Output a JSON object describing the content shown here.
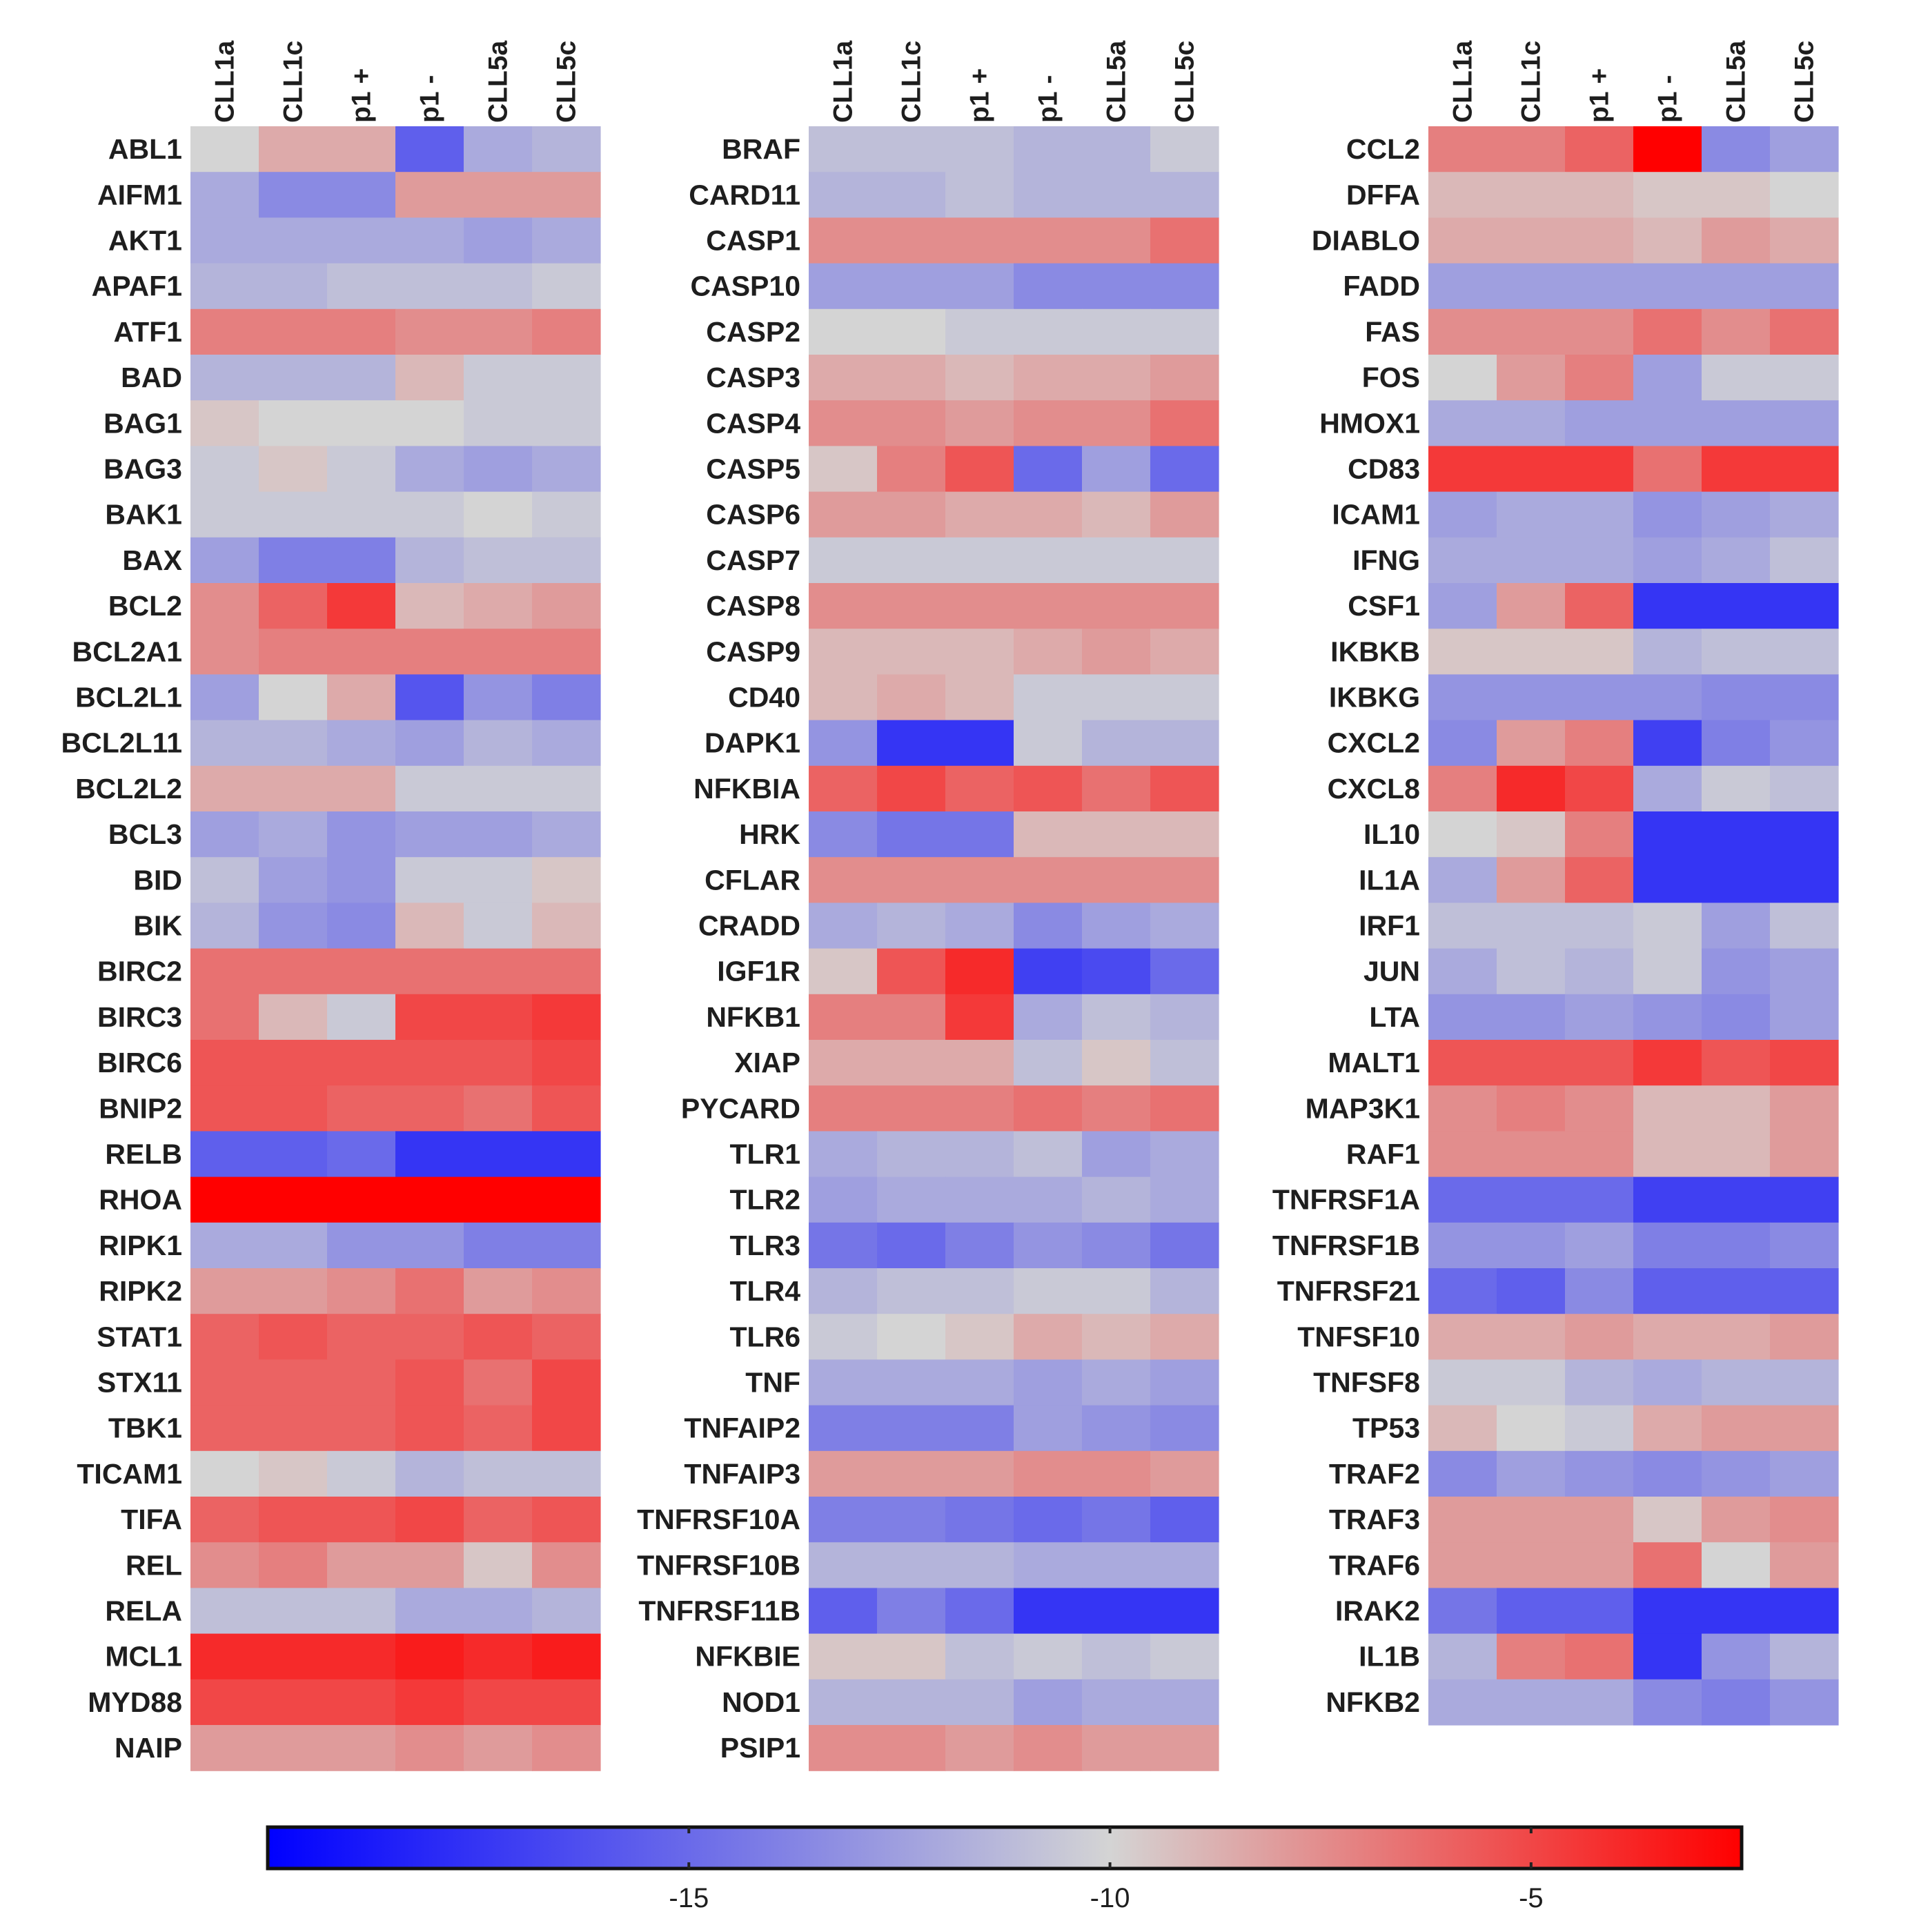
{
  "chart_data": {
    "type": "heatmap",
    "title": "",
    "columns": [
      "CLL1a",
      "CLL1c",
      "p1 +",
      "p1 -",
      "CLL5a",
      "CLL5c"
    ],
    "colorbar": {
      "min": -20,
      "max": -2.5,
      "ticks": [
        -15,
        -10,
        -5
      ],
      "tick_labels": [
        "-15",
        "-10",
        "-5"
      ],
      "colors": {
        "low": "#0000ff",
        "mid": "#d4d4d4",
        "high": "#ff0000"
      },
      "mid_value": -10
    },
    "panels": [
      {
        "rows": [
          "ABL1",
          "AIFM1",
          "AKT1",
          "APAF1",
          "ATF1",
          "BAD",
          "BAG1",
          "BAG3",
          "BAK1",
          "BAX",
          "BCL2",
          "BCL2A1",
          "BCL2L1",
          "BCL2L11",
          "BCL2L2",
          "BCL3",
          "BID",
          "BIK",
          "BIRC2",
          "BIRC3",
          "BIRC6",
          "BNIP2",
          "RELB",
          "RHOA",
          "RIPK1",
          "RIPK2",
          "STAT1",
          "STX11",
          "TBK1",
          "TICAM1",
          "TIFA",
          "REL",
          "RELA",
          "MCL1",
          "MYD88",
          "NAIP"
        ],
        "values": [
          [
            -10,
            -8.5,
            -8.5,
            -15.5,
            -12,
            -11.5
          ],
          [
            -12,
            -13.5,
            -13.5,
            -8,
            -8,
            -8
          ],
          [
            -12,
            -12,
            -12,
            -12,
            -12.5,
            -12
          ],
          [
            -11.5,
            -11.5,
            -11,
            -11,
            -11,
            -10.5
          ],
          [
            -7,
            -7,
            -7,
            -7.5,
            -7.5,
            -7
          ],
          [
            -11.5,
            -11.5,
            -11.5,
            -9,
            -10.5,
            -10.5
          ],
          [
            -9.5,
            -10,
            -10,
            -10,
            -10.5,
            -10.5
          ],
          [
            -10.5,
            -9.5,
            -10.5,
            -12,
            -12.5,
            -12
          ],
          [
            -10.5,
            -10.5,
            -10.5,
            -10.5,
            -10,
            -10.5
          ],
          [
            -12.5,
            -14,
            -14,
            -11.5,
            -11,
            -11
          ],
          [
            -7.5,
            -6,
            -4.5,
            -9,
            -8.5,
            -8
          ],
          [
            -7.5,
            -7,
            -7,
            -7,
            -7,
            -7
          ],
          [
            -12.5,
            -10,
            -8.5,
            -16,
            -13,
            -14
          ],
          [
            -11.5,
            -11.5,
            -12,
            -12.5,
            -11.5,
            -12
          ],
          [
            -8.5,
            -8.5,
            -8.5,
            -10.5,
            -10.5,
            -10.5
          ],
          [
            -12.5,
            -12,
            -13,
            -12.5,
            -12.5,
            -12
          ],
          [
            -11,
            -12.5,
            -13,
            -10.5,
            -10.5,
            -9.5
          ],
          [
            -11.5,
            -13,
            -13.5,
            -9,
            -10.5,
            -9
          ],
          [
            -6.5,
            -6.5,
            -6.5,
            -6.5,
            -6.5,
            -6.5
          ],
          [
            -6.5,
            -9,
            -10.5,
            -5,
            -5,
            -4.5
          ],
          [
            -5.5,
            -5.5,
            -5.5,
            -5.5,
            -5.5,
            -5
          ],
          [
            -5.5,
            -5.5,
            -6,
            -6,
            -6.5,
            -5.5
          ],
          [
            -15.5,
            -15.5,
            -15,
            -17.5,
            -17.5,
            -17.5
          ],
          [
            -2.5,
            -2.5,
            -2.5,
            -2.5,
            -2.5,
            -2.5
          ],
          [
            -12,
            -12,
            -13,
            -13,
            -14,
            -14
          ],
          [
            -8,
            -8,
            -7.5,
            -6.5,
            -8,
            -7.5
          ],
          [
            -6,
            -5.5,
            -6,
            -6,
            -5.5,
            -6
          ],
          [
            -6,
            -6,
            -6,
            -5.5,
            -6.5,
            -5
          ],
          [
            -6,
            -6,
            -6,
            -5.5,
            -6,
            -5
          ],
          [
            -10,
            -9.5,
            -10.5,
            -11.5,
            -11,
            -11
          ],
          [
            -6,
            -5.5,
            -5.5,
            -5,
            -6,
            -5.5
          ],
          [
            -7.5,
            -7,
            -8,
            -8,
            -9.5,
            -7.5
          ],
          [
            -11,
            -11,
            -11,
            -12,
            -12,
            -11.5
          ],
          [
            -4,
            -4,
            -4,
            -3.5,
            -4,
            -3.5
          ],
          [
            -5,
            -5,
            -5,
            -4.5,
            -5,
            -5
          ],
          [
            -8,
            -8,
            -8,
            -7.5,
            -8,
            -7.5
          ]
        ]
      },
      {
        "rows": [
          "BRAF",
          "CARD11",
          "CASP1",
          "CASP10",
          "CASP2",
          "CASP3",
          "CASP4",
          "CASP5",
          "CASP6",
          "CASP7",
          "CASP8",
          "CASP9",
          "CD40",
          "DAPK1",
          "NFKBIA",
          "HRK",
          "CFLAR",
          "CRADD",
          "IGF1R",
          "NFKB1",
          "XIAP",
          "PYCARD",
          "TLR1",
          "TLR2",
          "TLR3",
          "TLR4",
          "TLR6",
          "TNF",
          "TNFAIP2",
          "TNFAIP3",
          "TNFRSF10A",
          "TNFRSF10B",
          "TNFRSF11B",
          "NFKBIE",
          "NOD1",
          "PSIP1"
        ],
        "values": [
          [
            -11,
            -11,
            -11,
            -11.5,
            -11.5,
            -10.5
          ],
          [
            -11.5,
            -11.5,
            -11,
            -11.5,
            -11.5,
            -11.5
          ],
          [
            -7.5,
            -7.5,
            -7.5,
            -7.5,
            -7.5,
            -6.5
          ],
          [
            -12.5,
            -12.5,
            -12.5,
            -13.5,
            -13.5,
            -13.5
          ],
          [
            -10,
            -10,
            -10.5,
            -10.5,
            -10.5,
            -10.5
          ],
          [
            -8.5,
            -8.5,
            -9,
            -8.5,
            -8.5,
            -8
          ],
          [
            -7.5,
            -7.5,
            -8,
            -7.5,
            -7.5,
            -6.5
          ],
          [
            -9.5,
            -7,
            -5.5,
            -15,
            -12.5,
            -15
          ],
          [
            -8,
            -8,
            -8.5,
            -8.5,
            -9,
            -8
          ],
          [
            -10.5,
            -10.5,
            -10.5,
            -10.5,
            -10.5,
            -10.5
          ],
          [
            -7.5,
            -7.5,
            -7.5,
            -7.5,
            -7.5,
            -7.5
          ],
          [
            -9,
            -9,
            -9,
            -8.5,
            -8,
            -8.5
          ],
          [
            -9,
            -8.5,
            -9,
            -10.5,
            -10.5,
            -10.5
          ],
          [
            -13,
            -17.5,
            -17.5,
            -10.5,
            -11.5,
            -11.5
          ],
          [
            -6,
            -5,
            -6,
            -5.5,
            -6.5,
            -5.5
          ],
          [
            -13.5,
            -14.5,
            -14.5,
            -9,
            -9,
            -9
          ],
          [
            -7.5,
            -7.5,
            -7.5,
            -7.5,
            -7.5,
            -7.5
          ],
          [
            -12,
            -11.5,
            -12,
            -13.5,
            -12.5,
            -12
          ],
          [
            -9.5,
            -5.5,
            -4,
            -17,
            -16.5,
            -15
          ],
          [
            -7,
            -7,
            -4.5,
            -12,
            -11,
            -11.5
          ],
          [
            -8.5,
            -8.5,
            -8.5,
            -11,
            -9.5,
            -11
          ],
          [
            -7,
            -7,
            -7,
            -6.5,
            -7,
            -6.5
          ],
          [
            -12,
            -11.5,
            -11.5,
            -11,
            -12.5,
            -12
          ],
          [
            -12.5,
            -12,
            -12,
            -12,
            -11.5,
            -12
          ],
          [
            -14.5,
            -15,
            -14,
            -13,
            -13.5,
            -14.5
          ],
          [
            -11.5,
            -11,
            -11,
            -10.5,
            -10.5,
            -11.5
          ],
          [
            -10.5,
            -10,
            -9.5,
            -8.5,
            -9,
            -8.5
          ],
          [
            -12,
            -12,
            -12,
            -12.5,
            -12,
            -12.5
          ],
          [
            -14,
            -14,
            -14,
            -12.5,
            -13,
            -13.5
          ],
          [
            -8,
            -8,
            -8,
            -7.5,
            -7.5,
            -8
          ],
          [
            -14,
            -14,
            -14.5,
            -15,
            -14.5,
            -15.5
          ],
          [
            -11.5,
            -11.5,
            -11.5,
            -12,
            -12,
            -12
          ],
          [
            -15.5,
            -14,
            -15,
            -17.5,
            -17.5,
            -17.5
          ],
          [
            -9.5,
            -9.5,
            -11,
            -10.5,
            -11,
            -10.5
          ],
          [
            -11.5,
            -11.5,
            -11.5,
            -12.5,
            -12,
            -12
          ],
          [
            -7.5,
            -7.5,
            -8,
            -7.5,
            -8,
            -8
          ]
        ]
      },
      {
        "rows": [
          "CCL2",
          "DFFA",
          "DIABLO",
          "FADD",
          "FAS",
          "FOS",
          "HMOX1",
          "CD83",
          "ICAM1",
          "IFNG",
          "CSF1",
          "IKBKB",
          "IKBKG",
          "CXCL2",
          "CXCL8",
          "IL10",
          "IL1A",
          "IRF1",
          "JUN",
          "LTA",
          "MALT1",
          "MAP3K1",
          "RAF1",
          "TNFRSF1A",
          "TNFRSF1B",
          "TNFRSF21",
          "TNFSF10",
          "TNFSF8",
          "TP53",
          "TRAF2",
          "TRAF3",
          "TRAF6",
          "IRAK2",
          "IL1B",
          "NFKB2"
        ],
        "values": [
          [
            -7,
            -7,
            -6,
            -2.5,
            -13.5,
            -12.5
          ],
          [
            -9,
            -9,
            -9,
            -9.5,
            -9.5,
            -10
          ],
          [
            -8.5,
            -8.5,
            -8.5,
            -9,
            -8,
            -8.5
          ],
          [
            -12.5,
            -12.5,
            -12.5,
            -12.5,
            -12.5,
            -12.5
          ],
          [
            -7.5,
            -7.5,
            -7.5,
            -6.5,
            -7.5,
            -6.5
          ],
          [
            -10,
            -8,
            -7,
            -12.5,
            -10.5,
            -10.5
          ],
          [
            -12,
            -12,
            -12.5,
            -12.5,
            -12.5,
            -12.5
          ],
          [
            -4.5,
            -4.5,
            -4.5,
            -6.5,
            -4.5,
            -4.5
          ],
          [
            -12.5,
            -12,
            -12,
            -13,
            -12.5,
            -12
          ],
          [
            -12,
            -12,
            -12,
            -12.5,
            -12,
            -11
          ],
          [
            -12.5,
            -8,
            -6,
            -17.5,
            -17.5,
            -17.5
          ],
          [
            -9.5,
            -9.5,
            -9.5,
            -11.5,
            -11,
            -11
          ],
          [
            -13,
            -13,
            -13,
            -13,
            -13.5,
            -13.5
          ],
          [
            -13.5,
            -8,
            -7,
            -17,
            -14,
            -13
          ],
          [
            -7,
            -4,
            -5,
            -12,
            -10.5,
            -11
          ],
          [
            -10,
            -9.5,
            -7,
            -17.5,
            -17.5,
            -17.5
          ],
          [
            -12,
            -8,
            -6,
            -17.5,
            -17.5,
            -17.5
          ],
          [
            -11,
            -11,
            -11,
            -10.5,
            -12.5,
            -11
          ],
          [
            -12,
            -11,
            -11.5,
            -10.5,
            -13,
            -12.5
          ],
          [
            -13,
            -13,
            -12.5,
            -13,
            -13.5,
            -12.5
          ],
          [
            -5.5,
            -5.5,
            -5.5,
            -4.5,
            -5.5,
            -5
          ],
          [
            -7.5,
            -7,
            -7.5,
            -9,
            -9,
            -8
          ],
          [
            -7.5,
            -7.5,
            -7.5,
            -9,
            -9,
            -8
          ],
          [
            -15,
            -15,
            -15,
            -17,
            -17,
            -17
          ],
          [
            -13,
            -13,
            -12.5,
            -14,
            -14,
            -13.5
          ],
          [
            -15,
            -15.5,
            -13.5,
            -15.5,
            -15.5,
            -15.5
          ],
          [
            -8.5,
            -8.5,
            -8,
            -8.5,
            -8.5,
            -8
          ],
          [
            -10.5,
            -10.5,
            -11.5,
            -12,
            -11.5,
            -11.5
          ],
          [
            -9,
            -10,
            -10.5,
            -8.5,
            -8,
            -8
          ],
          [
            -13.5,
            -12.5,
            -13,
            -13.5,
            -13,
            -12.5
          ],
          [
            -8,
            -8,
            -8,
            -9.5,
            -8,
            -7.5
          ],
          [
            -8,
            -8,
            -8,
            -6.5,
            -10,
            -8
          ],
          [
            -14.5,
            -15.5,
            -15.5,
            -17.5,
            -17.5,
            -17.5
          ],
          [
            -11.5,
            -7,
            -6.5,
            -17.5,
            -13,
            -11.5
          ],
          [
            -12,
            -12,
            -12,
            -13.5,
            -14,
            -13
          ]
        ]
      }
    ]
  }
}
